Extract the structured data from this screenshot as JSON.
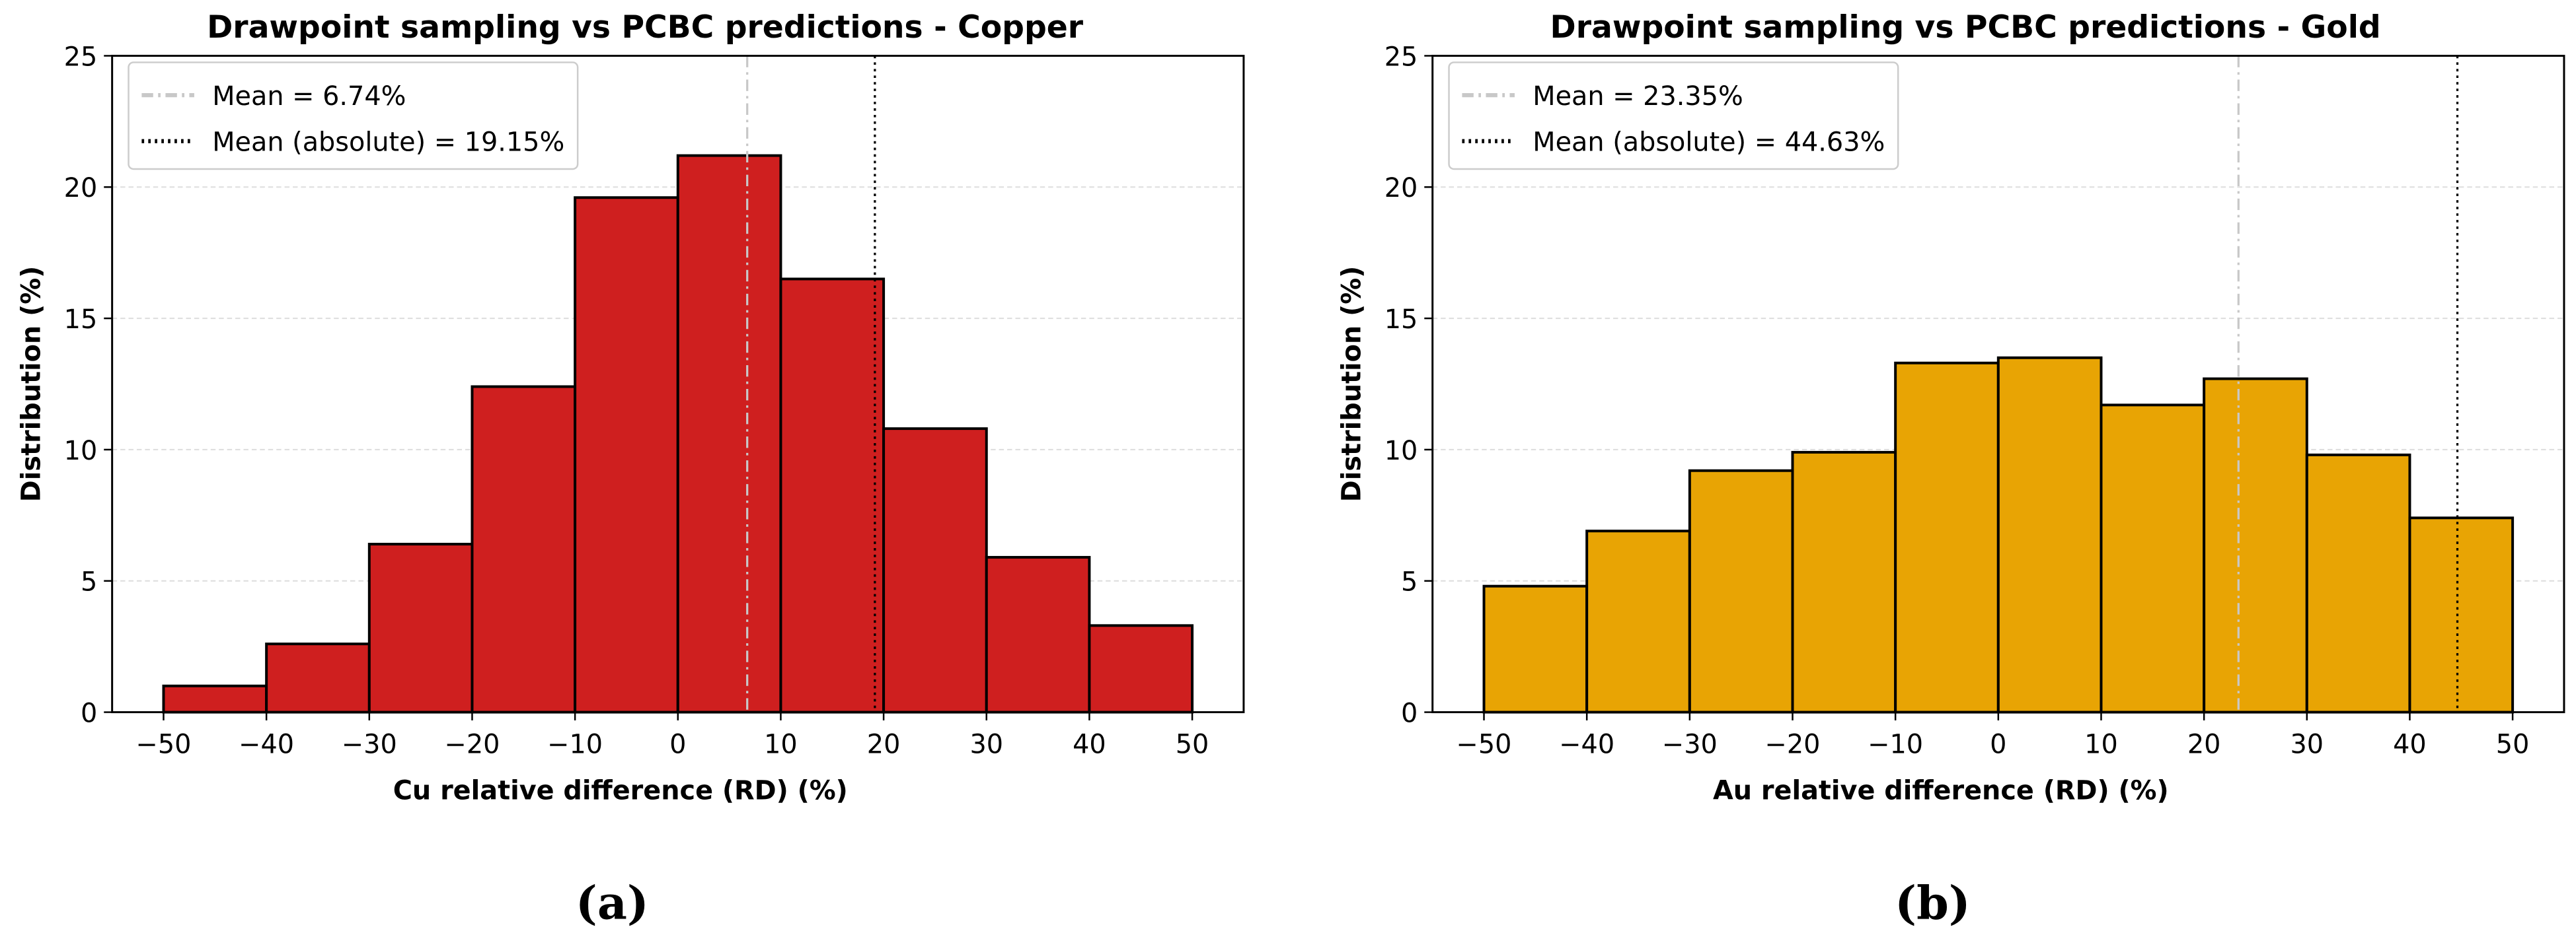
{
  "chart_data": [
    {
      "type": "histogram",
      "title": "Drawpoint sampling vs PCBC predictions - Copper",
      "xlabel": "Cu relative difference (RD) (%)",
      "ylabel": "Distribution (%)",
      "label": "(a)",
      "bins": [
        -50,
        -40,
        -30,
        -20,
        -10,
        0,
        10,
        20,
        30,
        40,
        50
      ],
      "values": [
        1.0,
        2.6,
        6.4,
        12.4,
        19.6,
        21.2,
        16.5,
        10.8,
        5.9,
        3.3
      ],
      "color": "#cf1f1f",
      "edgecolor": "#000000",
      "xlim": [
        -55,
        55
      ],
      "ylim": [
        0,
        25
      ],
      "xticks": [
        {
          "value": -50,
          "label": "−50"
        },
        {
          "value": -40,
          "label": "−40"
        },
        {
          "value": -30,
          "label": "−30"
        },
        {
          "value": -20,
          "label": "−20"
        },
        {
          "value": -10,
          "label": "−10"
        },
        0,
        10,
        20,
        30,
        40,
        50
      ],
      "yticks": [
        0,
        5,
        10,
        15,
        20,
        25
      ],
      "grid": true,
      "legend": "upper left",
      "mean_lines": [
        {
          "name": "Mean = 6.74%",
          "value": 6.74,
          "color": "#c8c8c8",
          "style": "dashdot"
        },
        {
          "name": "Mean (absolute) = 19.15%",
          "value": 19.15,
          "color": "#000000",
          "style": "dotted"
        }
      ]
    },
    {
      "type": "histogram",
      "title": "Drawpoint sampling vs PCBC predictions - Gold",
      "xlabel": "Au relative difference (RD) (%)",
      "ylabel": "Distribution (%)",
      "label": "(b)",
      "bins": [
        -50,
        -40,
        -30,
        -20,
        -10,
        0,
        10,
        20,
        30,
        40,
        50
      ],
      "values": [
        4.8,
        6.9,
        9.2,
        9.9,
        13.3,
        13.5,
        11.7,
        12.7,
        9.8,
        7.4
      ],
      "color": "#e8a404",
      "edgecolor": "#000000",
      "xlim": [
        -55,
        55
      ],
      "ylim": [
        0,
        25
      ],
      "xticks": [
        {
          "value": -50,
          "label": "−50"
        },
        {
          "value": -40,
          "label": "−40"
        },
        {
          "value": -30,
          "label": "−30"
        },
        {
          "value": -20,
          "label": "−20"
        },
        {
          "value": -10,
          "label": "−10"
        },
        0,
        10,
        20,
        30,
        40,
        50
      ],
      "yticks": [
        0,
        5,
        10,
        15,
        20,
        25
      ],
      "grid": true,
      "legend": "upper left",
      "mean_lines": [
        {
          "name": "Mean = 23.35%",
          "value": 23.35,
          "color": "#c8c8c8",
          "style": "dashdot"
        },
        {
          "name": "Mean (absolute) = 44.63%",
          "value": 44.63,
          "color": "#000000",
          "style": "dotted"
        }
      ]
    }
  ]
}
